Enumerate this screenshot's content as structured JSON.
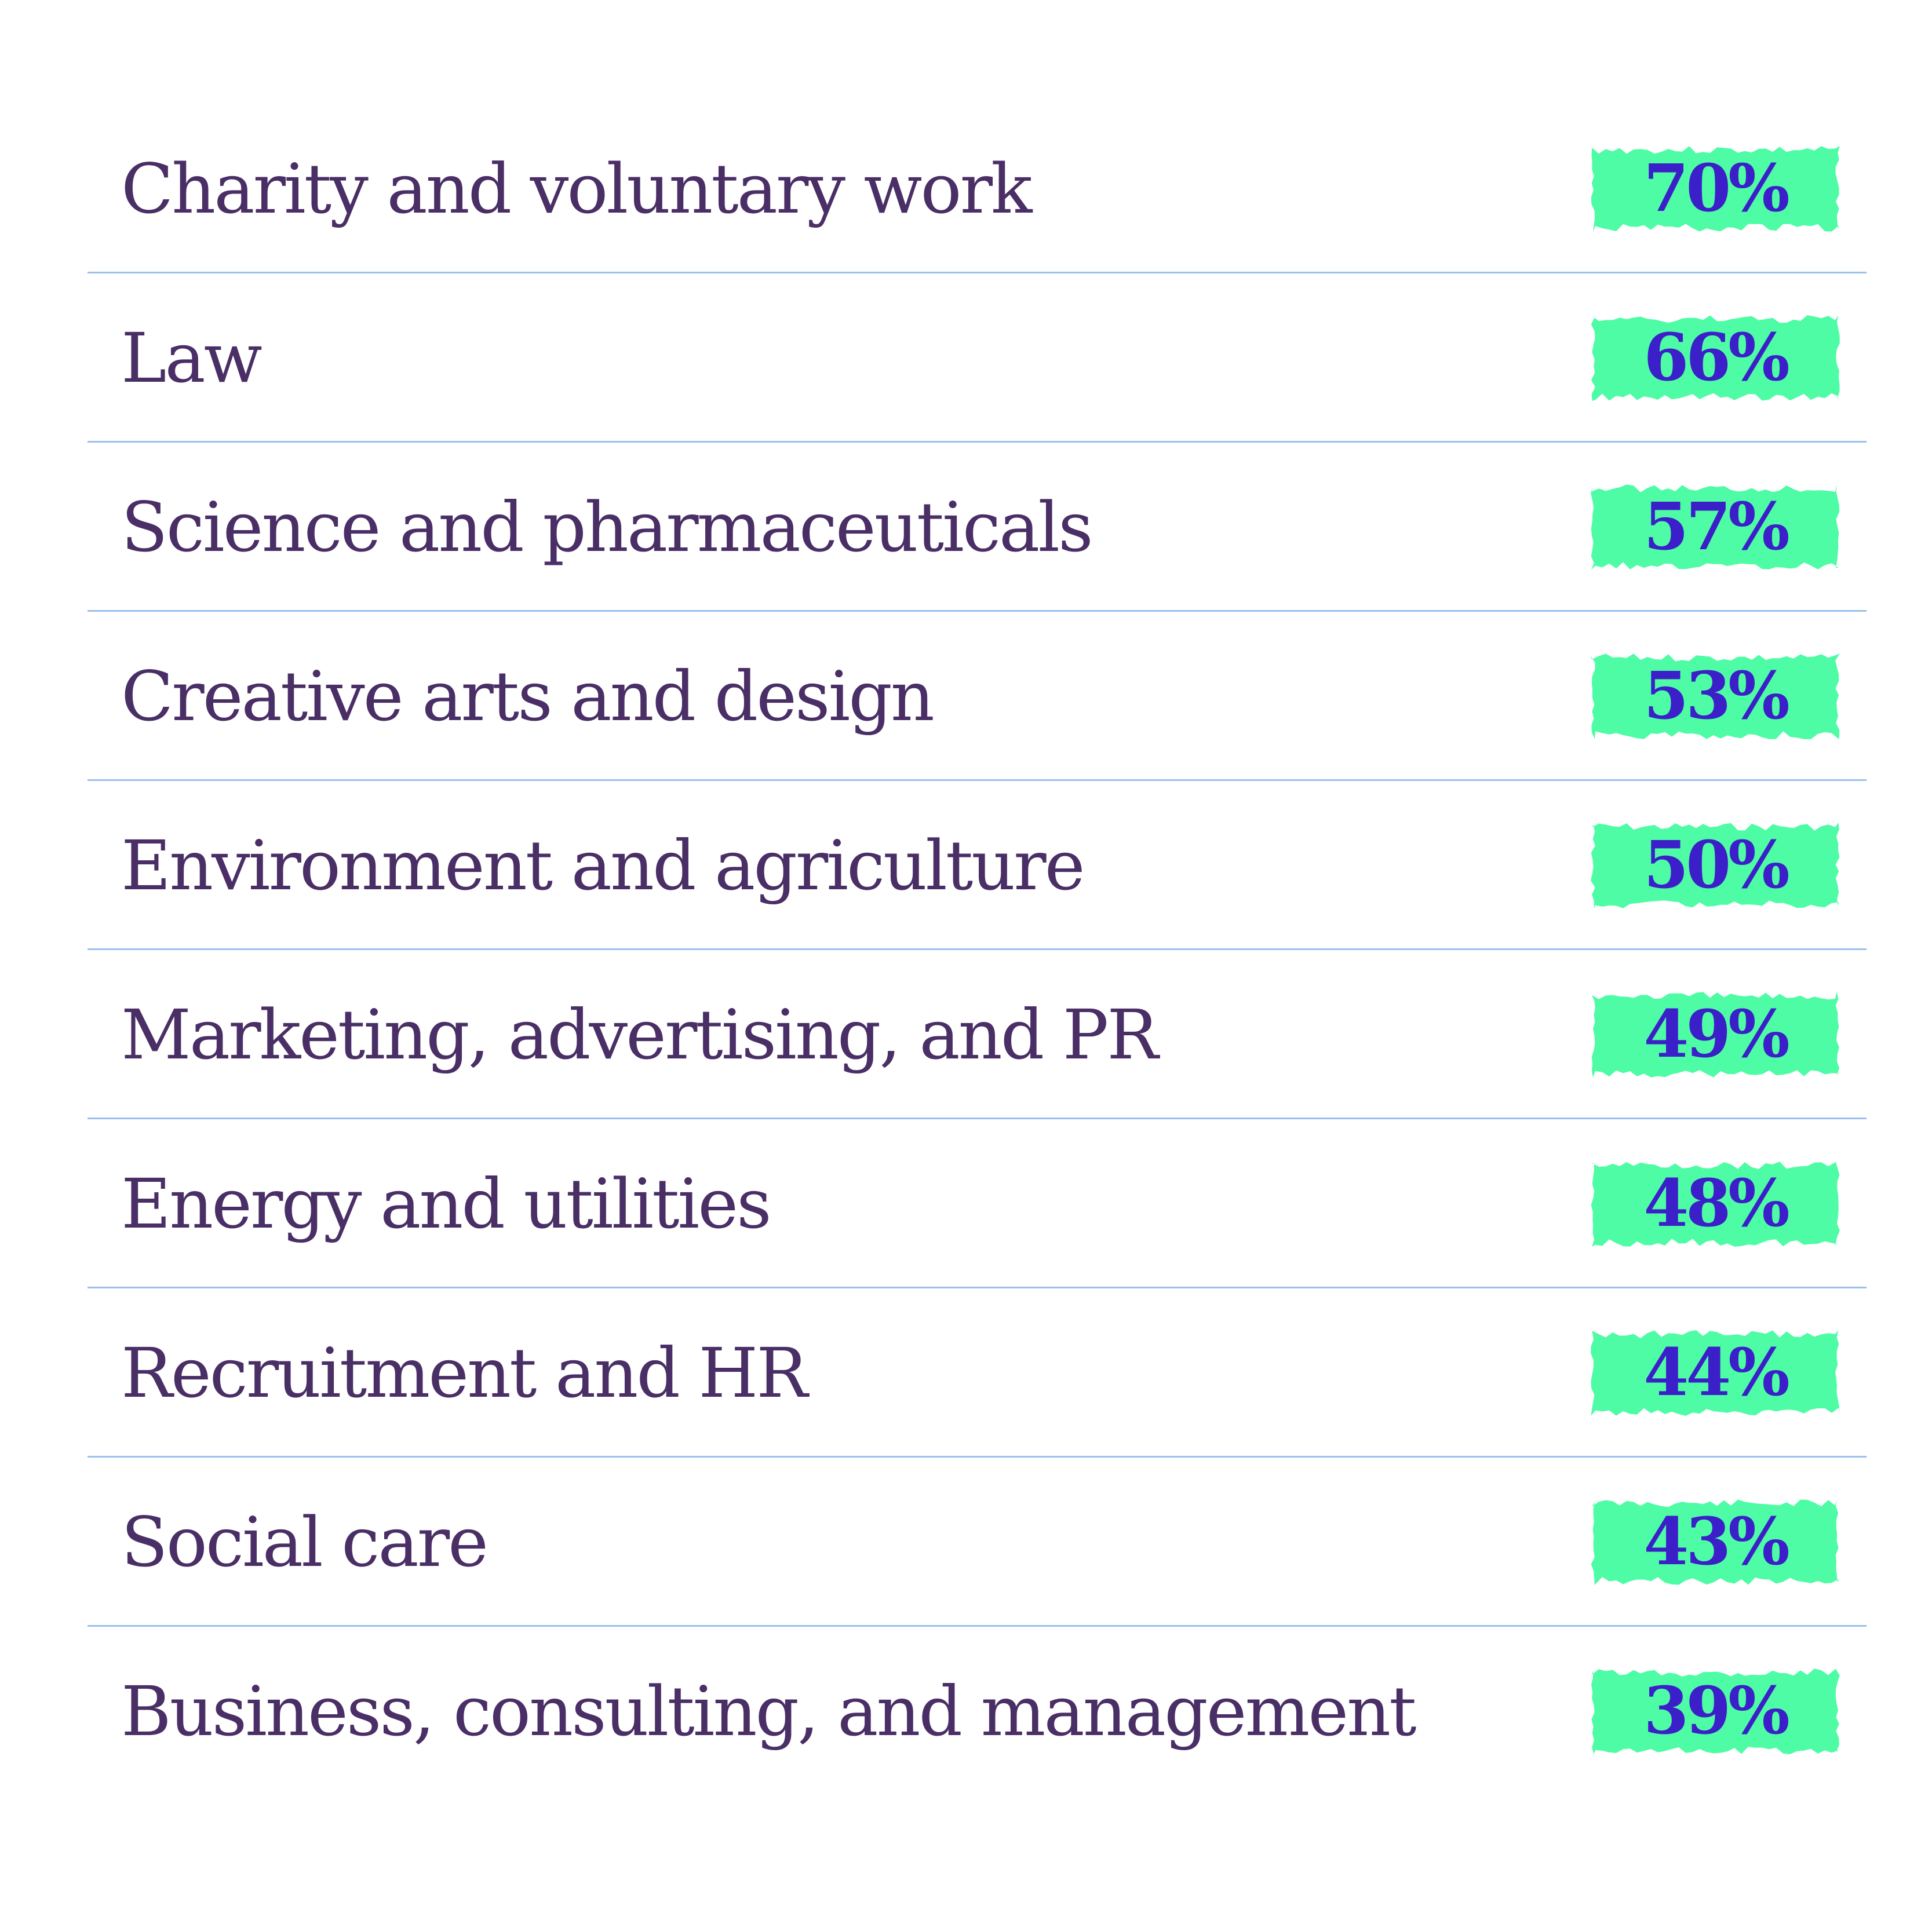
{
  "colors": {
    "label_text": "#4a2f66",
    "value_text": "#3b1fc9",
    "badge_fill": "#4dfca5",
    "divider": "#9bc0ee"
  },
  "chart_data": {
    "type": "table",
    "unit": "%",
    "rows": [
      {
        "label": "Charity and voluntary work",
        "value": 70,
        "display": "70%"
      },
      {
        "label": "Law",
        "value": 66,
        "display": "66%"
      },
      {
        "label": "Science and pharmaceuticals",
        "value": 57,
        "display": "57%"
      },
      {
        "label": "Creative arts and design",
        "value": 53,
        "display": "53%"
      },
      {
        "label": "Environment and agriculture",
        "value": 50,
        "display": "50%"
      },
      {
        "label": "Marketing, advertising, and PR",
        "value": 49,
        "display": "49%"
      },
      {
        "label": "Energy and utilities",
        "value": 48,
        "display": "48%"
      },
      {
        "label": "Recruitment and HR",
        "value": 44,
        "display": "44%"
      },
      {
        "label": "Social care",
        "value": 43,
        "display": "43%"
      },
      {
        "label": "Business, consulting, and management",
        "value": 39,
        "display": "39%"
      }
    ]
  }
}
